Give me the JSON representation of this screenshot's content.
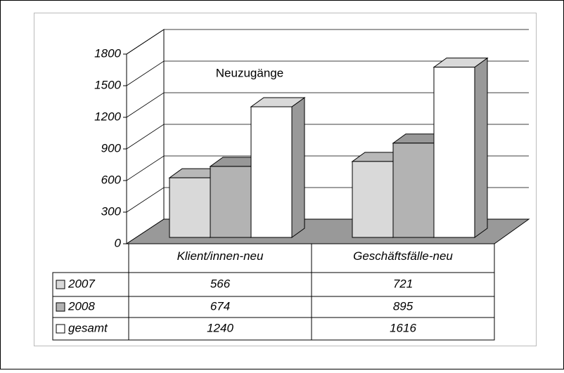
{
  "chart_data": {
    "type": "bar3d",
    "title": "Neuzugänge",
    "categories": [
      "Klient/innen-neu",
      "Geschäftsfälle-neu"
    ],
    "series": [
      {
        "name": "2007",
        "color": "#d9d9d9",
        "values": [
          566,
          721
        ]
      },
      {
        "name": "2008",
        "color": "#b3b3b3",
        "values": [
          674,
          895
        ]
      },
      {
        "name": "gesamt",
        "color": "#ffffff",
        "values": [
          1240,
          1616
        ]
      }
    ],
    "ylim": [
      0,
      1800
    ],
    "yticks": [
      0,
      300,
      600,
      900,
      1200,
      1500,
      1800
    ],
    "grid": true,
    "data_table": true
  }
}
